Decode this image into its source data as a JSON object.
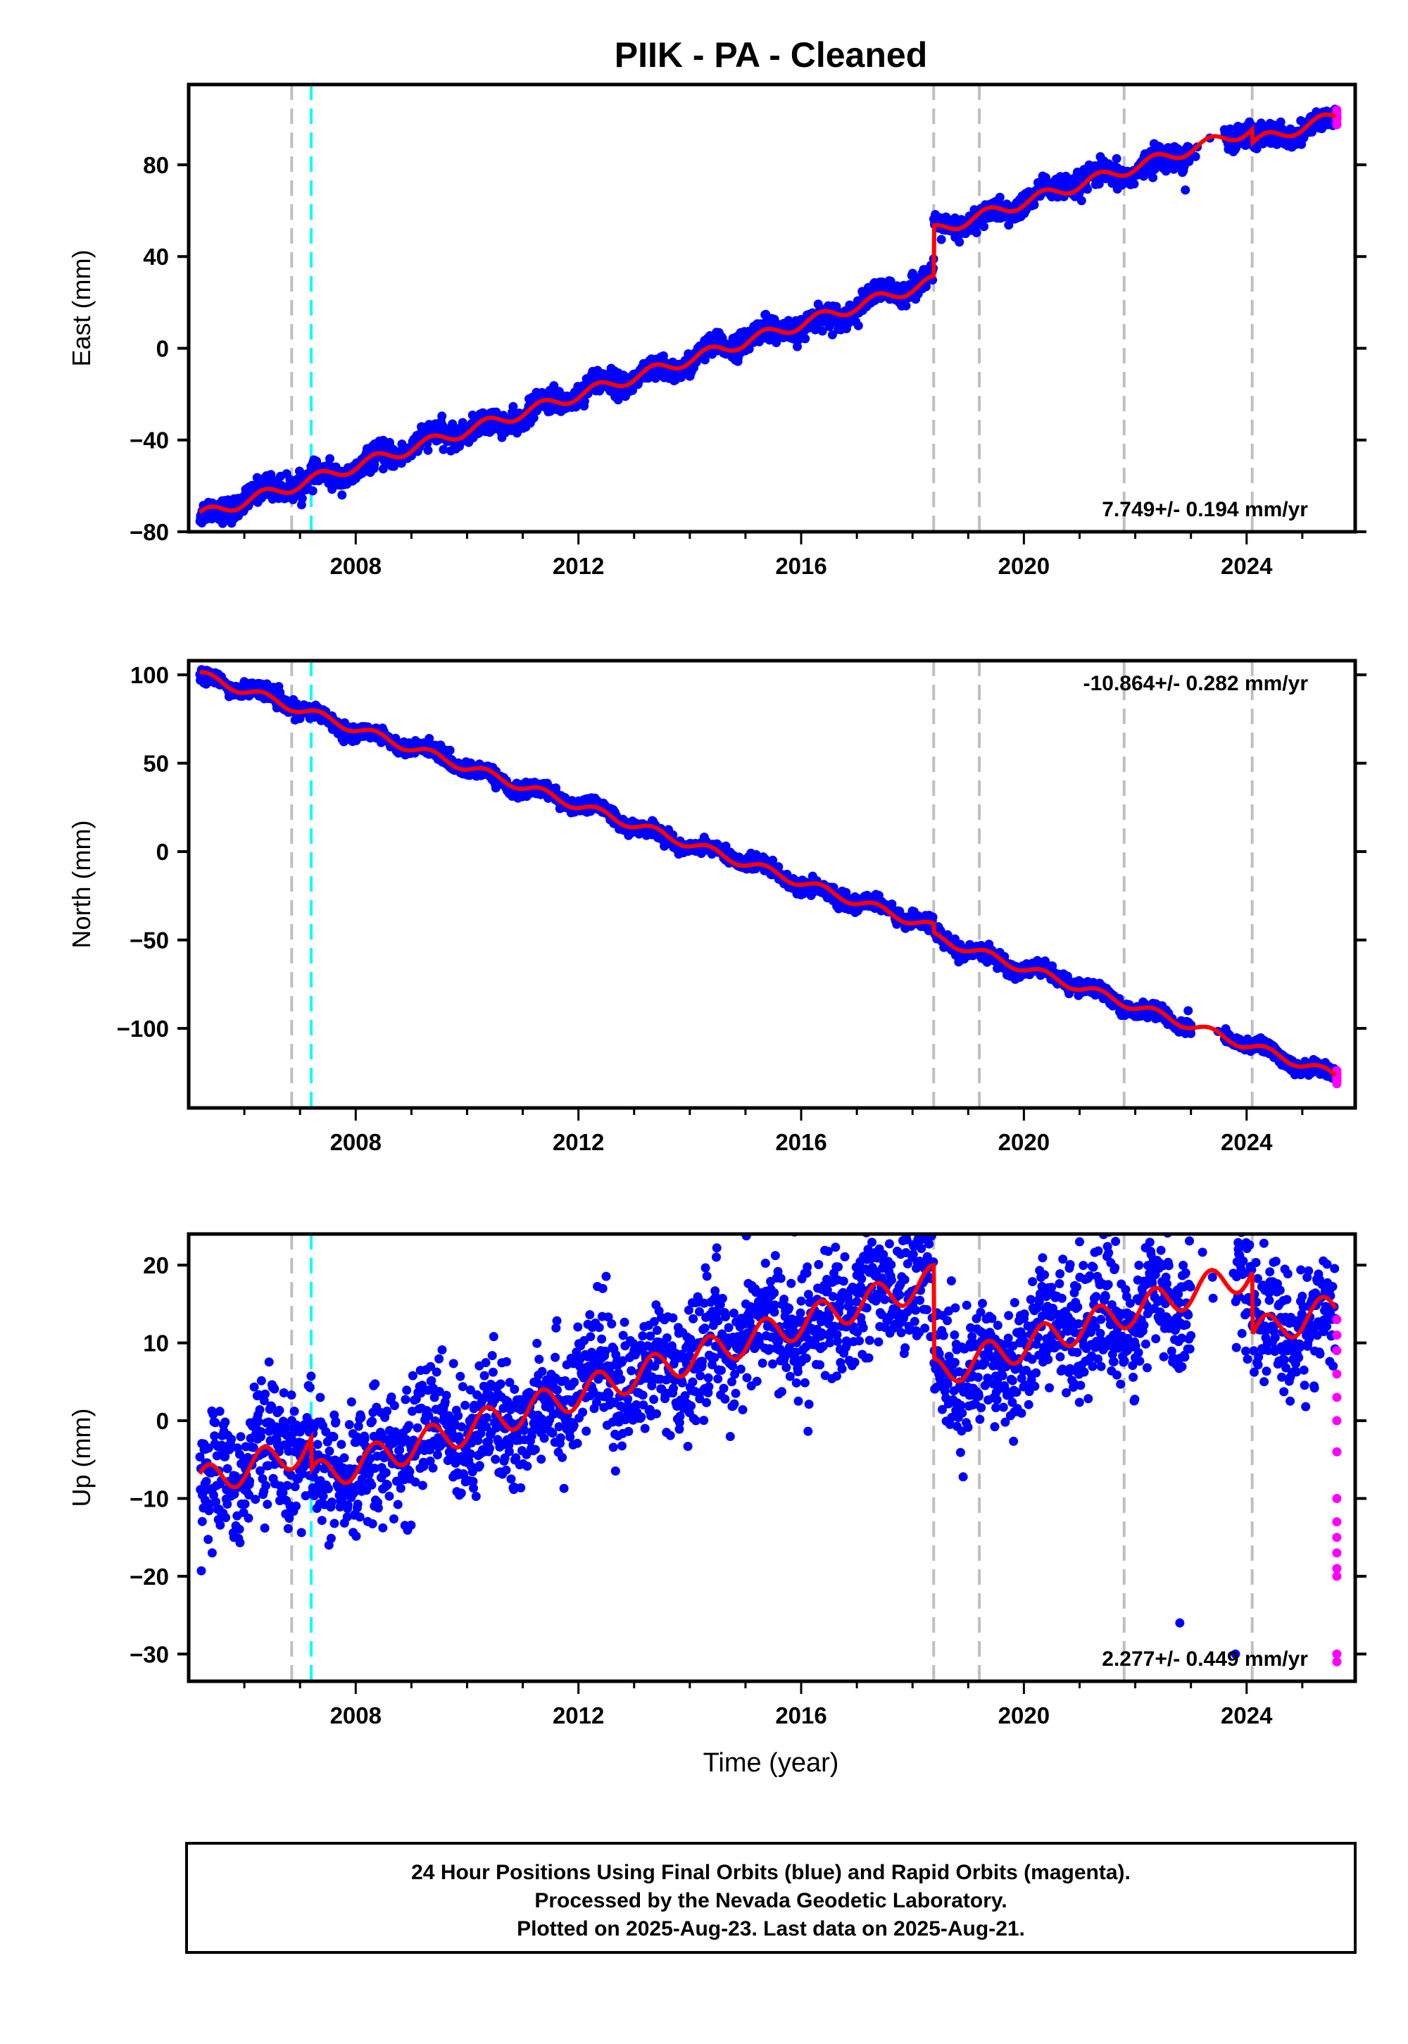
{
  "chart_data": {
    "type": "scatter",
    "title": "PIIK  - PA - Cleaned",
    "xlabel": "Time (year)",
    "xlim": [
      2005.0,
      2025.95
    ],
    "xticks": [
      2008,
      2012,
      2016,
      2020,
      2024
    ],
    "colors": {
      "final_orbits": "#0000ff",
      "rapid_orbits": "#ff00ff",
      "model_fit": "#ff0000",
      "equipment_change": "#bfbfbf",
      "earthquake": "#00ffff"
    },
    "event_lines": {
      "gray_dashed": [
        2006.85,
        2018.38,
        2019.2,
        2021.8,
        2024.1
      ],
      "cyan_dashed": [
        2007.2
      ]
    },
    "panels": [
      {
        "name": "east",
        "ylabel": "East (mm)",
        "ylim": [
          -80,
          115
        ],
        "yticks": [
          -80,
          -40,
          0,
          40,
          80
        ],
        "rate": "7.749+/- 0.194 mm/yr",
        "rate_position": "bottom-right",
        "trend": {
          "start_year": 2005.2,
          "start_value": -73,
          "rate_mm_yr": 7.749,
          "offsets": [
            {
              "year": 2018.38,
              "value": 22
            },
            {
              "year": 2024.1,
              "value": -6
            }
          ],
          "annual_amplitude": 2.5,
          "scatter": 2.5,
          "gap": [
            2023.0,
            2023.6
          ],
          "outliers": [
            {
              "year": 2022.9,
              "value": 69
            },
            {
              "year": 2019.5,
              "value": 57
            }
          ]
        }
      },
      {
        "name": "north",
        "ylabel": "North (mm)",
        "ylim": [
          -145,
          108
        ],
        "yticks": [
          -100,
          -50,
          0,
          50,
          100
        ],
        "rate": "-10.864+/- 0.282 mm/yr",
        "rate_position": "top-right",
        "trend": {
          "start_year": 2005.2,
          "start_value": 100,
          "rate_mm_yr": -10.864,
          "offsets": [
            {
              "year": 2018.38,
              "value": -5
            }
          ],
          "annual_amplitude": 2.5,
          "scatter": 2.0,
          "gap": [
            2023.0,
            2023.6
          ],
          "outliers": [
            {
              "year": 2022.95,
              "value": -90
            },
            {
              "year": 2023.0,
              "value": -98
            },
            {
              "year": 2023.7,
              "value": -105
            }
          ]
        }
      },
      {
        "name": "up",
        "ylabel": "Up (mm)",
        "ylim": [
          -33.5,
          24
        ],
        "yticks": [
          -30,
          -20,
          -10,
          0,
          10,
          20
        ],
        "rate": "2.277+/- 0.449 mm/yr",
        "rate_position": "bottom-right",
        "trend": {
          "start_year": 2005.2,
          "start_value": -8,
          "rate_mm_yr": 2.277,
          "offsets": [
            {
              "year": 2007.2,
              "value": -4
            },
            {
              "year": 2018.38,
              "value": -12
            },
            {
              "year": 2024.1,
              "value": -8
            }
          ],
          "annual_amplitude": 2.0,
          "scatter": 4.0,
          "gap": [
            2023.0,
            2023.8
          ],
          "outliers": [
            {
              "year": 2022.8,
              "value": -26
            },
            {
              "year": 2023.8,
              "value": -30
            },
            {
              "year": 2025.0,
              "value": 16
            },
            {
              "year": 2021.0,
              "value": 23
            }
          ]
        },
        "rapid_values": [
          13,
          11,
          9,
          6,
          3,
          0,
          -4,
          -10,
          -13,
          -15,
          -17,
          -19,
          -20,
          -30,
          -31
        ]
      }
    ],
    "footer": [
      "24 Hour Positions Using Final Orbits (blue) and Rapid Orbits (magenta).",
      "Processed by the Nevada Geodetic Laboratory.",
      "Plotted on 2025-Aug-23. Last data on 2025-Aug-21."
    ]
  }
}
